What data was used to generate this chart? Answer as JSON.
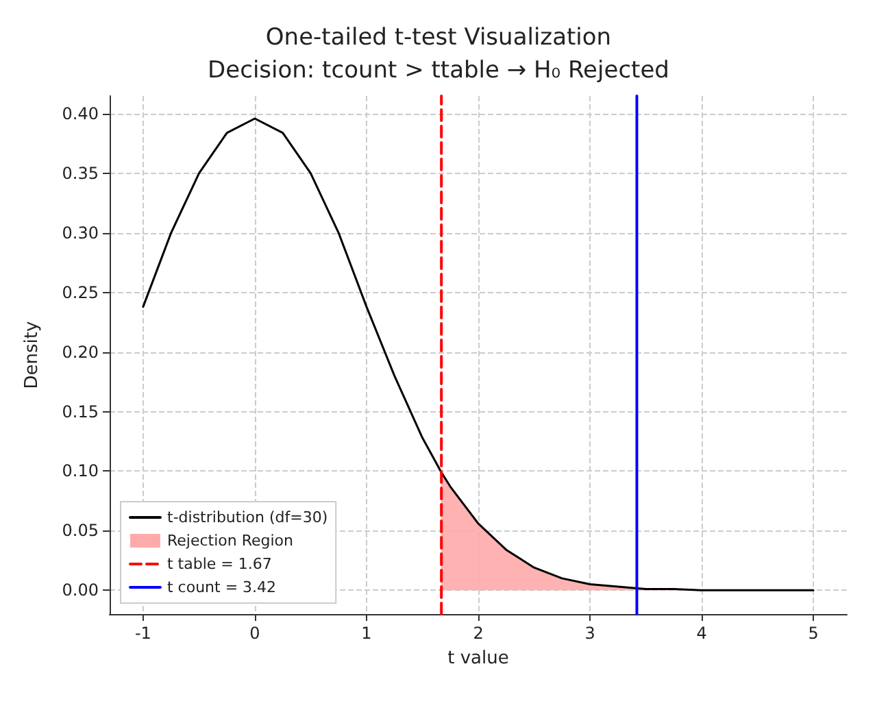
{
  "chart_data": {
    "type": "line",
    "title": "One-tailed t-test Visualization",
    "subtitle": "Decision: tcount > ttable → H₀ Rejected",
    "xlabel": "t value",
    "ylabel": "Density",
    "series": [
      {
        "name": "t-distribution (df=30)",
        "color": "#000000",
        "x": [
          -1,
          -0.75,
          -0.5,
          -0.25,
          0,
          0.25,
          0.5,
          0.75,
          1,
          1.25,
          1.5,
          1.67,
          1.75,
          2,
          2.25,
          2.5,
          2.75,
          3,
          3.25,
          3.5,
          3.75,
          4,
          4.5,
          5
        ],
        "values": [
          0.238,
          0.3,
          0.35,
          0.384,
          0.396,
          0.384,
          0.35,
          0.3,
          0.238,
          0.18,
          0.128,
          0.099,
          0.087,
          0.056,
          0.034,
          0.019,
          0.01,
          0.005,
          0.003,
          0.001,
          0.001,
          0,
          0,
          0
        ]
      },
      {
        "name": "Rejection Region",
        "type": "area",
        "color": "#ffaaaa",
        "x": [
          1.67,
          1.75,
          2,
          2.25,
          2.5,
          2.75,
          3,
          3.25,
          3.5,
          3.75,
          4,
          4.5,
          5
        ],
        "values": [
          0.099,
          0.087,
          0.056,
          0.034,
          0.019,
          0.01,
          0.005,
          0.003,
          0.001,
          0.001,
          0,
          0,
          0
        ]
      },
      {
        "name": "t table = 1.67",
        "type": "line",
        "color": "#ff0000",
        "line_style": "dashed",
        "x": [
          1.67,
          1.67
        ],
        "values": [
          -0.02,
          0.415
        ]
      },
      {
        "name": "t count = 3.42",
        "type": "line",
        "color": "#0000ff",
        "line_style": "solid",
        "x": [
          3.42,
          3.42
        ],
        "values": [
          -0.02,
          0.415
        ]
      }
    ],
    "xlim": [
      -1.3,
      5.3
    ],
    "xticks": [
      -1,
      0,
      1,
      2,
      3,
      4,
      5
    ],
    "ylim": [
      -0.02,
      0.415
    ],
    "yticks": [
      {
        "value": 0,
        "label": "0.00"
      },
      {
        "value": 0.05,
        "label": "0.05"
      },
      {
        "value": 0.1,
        "label": "0.10"
      },
      {
        "value": 0.15,
        "label": "0.15"
      },
      {
        "value": 0.2,
        "label": "0.20"
      },
      {
        "value": 0.25,
        "label": "0.25"
      },
      {
        "value": 0.3,
        "label": "0.30"
      },
      {
        "value": 0.35,
        "label": "0.35"
      },
      {
        "value": 0.4,
        "label": "0.40"
      }
    ],
    "grid": true,
    "legend": "bottom left",
    "marker": "none",
    "line_style": "solid"
  }
}
